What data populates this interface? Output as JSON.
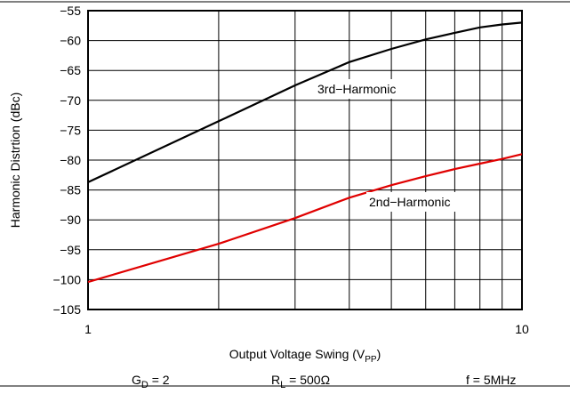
{
  "chart_data": {
    "type": "line",
    "y_label": "Harmonic Distrtion (dBc)",
    "x_label": [
      "Output Voltage Swing (V",
      "PP",
      ")"
    ],
    "x": [
      1,
      2,
      3,
      4,
      5,
      6,
      7,
      8,
      9,
      10
    ],
    "series": [
      {
        "name": "3rd−Harmonic",
        "color": "#000000",
        "values": [
          -83.7,
          -73.5,
          -67.5,
          -63.6,
          -61.4,
          -59.8,
          -58.7,
          -57.8,
          -57.3,
          -57.0
        ]
      },
      {
        "name": "2nd−Harmonic",
        "color": "#e00000",
        "values": [
          -100.4,
          -94.0,
          -89.7,
          -86.3,
          -84.2,
          -82.7,
          -81.5,
          -80.6,
          -79.8,
          -79.0
        ]
      }
    ],
    "xlim": [
      1,
      10
    ],
    "xscale": "log",
    "xticks": [
      1,
      10
    ],
    "xminorticks": [
      2,
      3,
      4,
      5,
      6,
      7,
      8,
      9
    ],
    "ylim": [
      -105,
      -55
    ],
    "yticks": [
      {
        "value": -55,
        "label": "−55"
      },
      {
        "value": -60,
        "label": "−60"
      },
      {
        "value": -65,
        "label": "−65"
      },
      {
        "value": -70,
        "label": "−70"
      },
      {
        "value": -75,
        "label": "−75"
      },
      {
        "value": -80,
        "label": "−80"
      },
      {
        "value": -85,
        "label": "−85"
      },
      {
        "value": -90,
        "label": "−90"
      },
      {
        "value": -95,
        "label": "−95"
      },
      {
        "value": -100,
        "label": "−100"
      },
      {
        "value": -105,
        "label": "−105"
      }
    ],
    "grid": true,
    "footnotes": [
      [
        "G",
        "D",
        " = 2"
      ],
      [
        "R",
        "L",
        " = 500Ω"
      ],
      [
        "f = 5MHz"
      ]
    ]
  }
}
